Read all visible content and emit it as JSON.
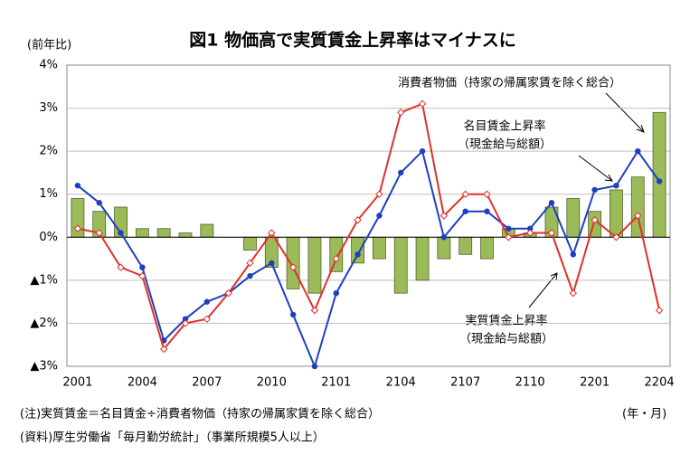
{
  "chart_data": {
    "type": "bar_line",
    "title": "図1 物価高で実質賃金上昇率はマイナスに",
    "y_label": "(前年比)",
    "x_label": "(年・月)",
    "notes": [
      "(注)実質賃金＝名目賃金÷消費者物価（持家の帰属家賃を除く総合）",
      "(資料)厚生労働省「毎月勤労統計」（事業所規模5人以上）"
    ],
    "categories": [
      "2001",
      null,
      null,
      "2004",
      null,
      null,
      "2007",
      null,
      null,
      "2010",
      null,
      null,
      "2101",
      null,
      null,
      "2104",
      null,
      null,
      "2107",
      null,
      null,
      "2110",
      null,
      null,
      "2201",
      null,
      null,
      "2204"
    ],
    "ylim": [
      -3,
      4
    ],
    "yticks": [
      {
        "value": 4,
        "label": "4%"
      },
      {
        "value": 3,
        "label": "3%"
      },
      {
        "value": 2,
        "label": "2%"
      },
      {
        "value": 1,
        "label": "1%"
      },
      {
        "value": 0,
        "label": "0%"
      },
      {
        "value": -1,
        "label": "▲1%"
      },
      {
        "value": -2,
        "label": "▲2%"
      },
      {
        "value": -3,
        "label": "▲3%"
      }
    ],
    "grid": true,
    "series": [
      {
        "name": "消費者物価（持家の帰属家賃を除く総合）",
        "type": "bar",
        "color": "#9bbb59",
        "values": [
          0.9,
          0.6,
          0.7,
          0.2,
          0.2,
          0.1,
          0.3,
          0.0,
          -0.3,
          -0.7,
          -1.2,
          -1.3,
          -0.8,
          -0.6,
          -0.5,
          -1.3,
          -1.0,
          -0.5,
          -0.4,
          -0.5,
          0.2,
          0.1,
          0.7,
          0.9,
          0.6,
          1.1,
          1.4,
          2.9
        ]
      },
      {
        "name": "名目賃金上昇率",
        "type": "line",
        "color": "#1f3fbf",
        "note": "（現金給与総額）",
        "values": [
          1.2,
          0.8,
          0.1,
          -0.7,
          -2.4,
          -1.9,
          -1.5,
          -1.3,
          -0.9,
          -0.6,
          -1.8,
          -3.0,
          -1.3,
          -0.4,
          0.5,
          1.5,
          2.0,
          0.0,
          0.6,
          0.6,
          0.2,
          0.2,
          0.8,
          -0.4,
          1.1,
          1.2,
          2.0,
          1.3
        ]
      },
      {
        "name": "実質賃金上昇率",
        "type": "line",
        "color": "#e0302a",
        "marker": "diamond",
        "note": "（現金給与総額）",
        "values": [
          0.2,
          0.1,
          -0.7,
          -0.9,
          -2.6,
          -2.0,
          -1.9,
          -1.3,
          -0.6,
          0.1,
          -0.7,
          -1.7,
          -0.5,
          0.4,
          1.0,
          2.9,
          3.1,
          0.5,
          1.0,
          1.0,
          0.0,
          0.1,
          0.1,
          -1.3,
          0.4,
          0.0,
          0.5,
          -1.7
        ]
      }
    ]
  }
}
